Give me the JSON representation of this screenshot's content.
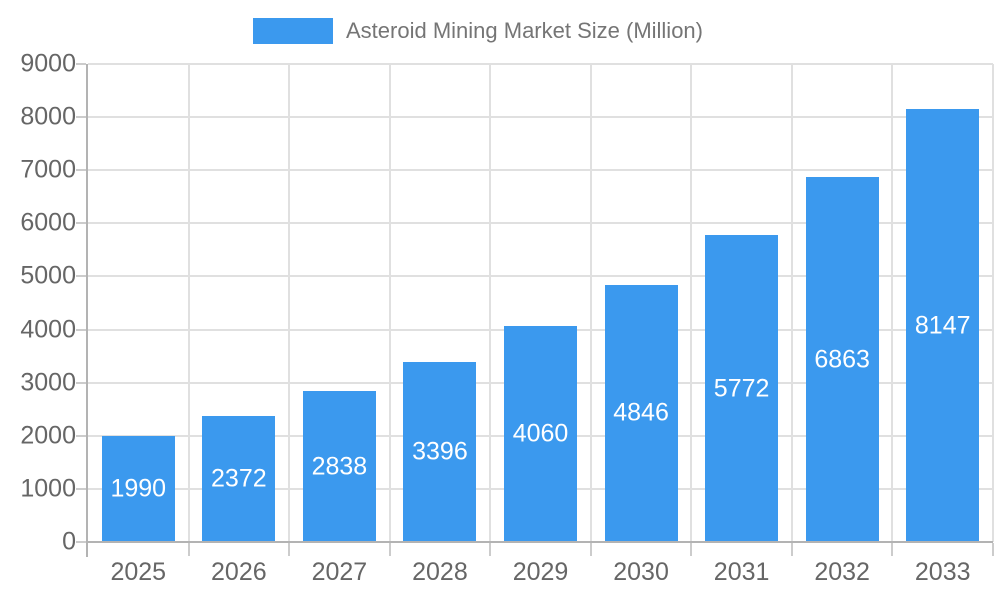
{
  "legend": {
    "label": "Asteroid Mining Market Size (Million)"
  },
  "chart_data": {
    "type": "bar",
    "title": "Asteroid Mining Market Size (Million)",
    "series_name": "Asteroid Mining Market Size (Million)",
    "categories": [
      "2025",
      "2026",
      "2027",
      "2028",
      "2029",
      "2030",
      "2031",
      "2032",
      "2033"
    ],
    "values": [
      1990,
      2372,
      2838,
      3396,
      4060,
      4846,
      5772,
      6863,
      8147
    ],
    "bar_labels": [
      "1990",
      "2372",
      "2838",
      "3396",
      "4060",
      "4846",
      "5772",
      "6863",
      "8147"
    ],
    "xlabel": "",
    "ylabel": "",
    "ylim": [
      0,
      9000
    ],
    "ytick_step": 1000,
    "ytick_labels": [
      "0",
      "1000",
      "2000",
      "3000",
      "4000",
      "5000",
      "6000",
      "7000",
      "8000",
      "9000"
    ],
    "grid": true,
    "legend_position": "top"
  },
  "colors": {
    "bar": "#3B99EE",
    "bar_label_text": "#ffffff",
    "grid": "#e0e0e0",
    "axis_line": "#b3b3b3",
    "tick": "#cccccc",
    "axis_text": "#666666",
    "title_text": "#757575",
    "background": "#ffffff"
  }
}
